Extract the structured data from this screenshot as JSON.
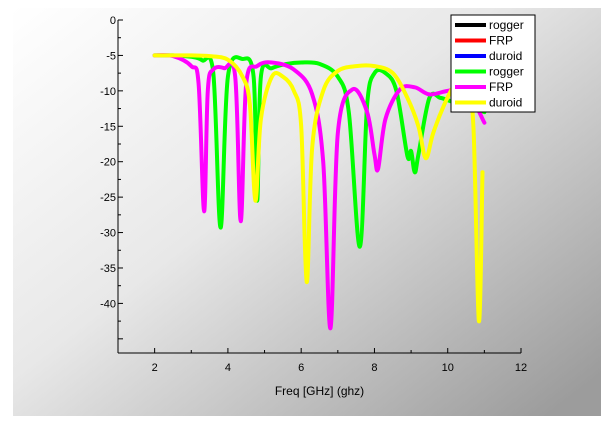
{
  "chart_data": {
    "type": "line",
    "title": "",
    "xlabel": "Freq [GHz] (ghz)",
    "ylabel": "",
    "xlim": [
      1,
      12
    ],
    "ylim": [
      -47,
      0
    ],
    "x_ticks": [
      "2",
      "4",
      "6",
      "8",
      "10",
      "12"
    ],
    "y_ticks": [
      "0",
      "-5",
      "-10",
      "-15",
      "-20",
      "-25",
      "-30",
      "-35",
      "-40"
    ],
    "legend_position": "top-right",
    "grid": false,
    "series": [
      {
        "name": "rogger",
        "color": "#000000",
        "x": [],
        "y": []
      },
      {
        "name": "FRP",
        "color": "#ff0000",
        "x": [],
        "y": []
      },
      {
        "name": "duroid",
        "color": "#0000ff",
        "x": [],
        "y": []
      },
      {
        "name": "rogger",
        "color": "#00ff00",
        "x": [
          2.0,
          2.5,
          3.0,
          3.3,
          3.6,
          3.8,
          4.0,
          4.4,
          4.7,
          4.8,
          4.9,
          5.2,
          5.6,
          6.0,
          6.5,
          7.0,
          7.3,
          7.6,
          7.8,
          8.0,
          8.3,
          8.6,
          8.9,
          9.0,
          9.1,
          9.2,
          9.5,
          9.8,
          10.1,
          10.4,
          10.7,
          11.0
        ],
        "y": [
          -5,
          -5,
          -5.2,
          -5.7,
          -7.5,
          -29.3,
          -8,
          -5.5,
          -8,
          -25.5,
          -8,
          -6.8,
          -6.2,
          -6,
          -6.2,
          -8,
          -13,
          -32,
          -12,
          -7.5,
          -7.5,
          -10,
          -19.2,
          -18.5,
          -21.5,
          -19,
          -11,
          -11,
          -11.5,
          -12,
          -12.5,
          -13
        ]
      },
      {
        "name": "FRP",
        "color": "#ff00ff",
        "x": [
          2.0,
          2.5,
          3.0,
          3.2,
          3.35,
          3.45,
          3.6,
          3.9,
          4.2,
          4.35,
          4.5,
          4.8,
          5.2,
          5.8,
          6.3,
          6.6,
          6.8,
          7.0,
          7.4,
          7.8,
          8.0,
          8.1,
          8.3,
          8.7,
          9.1,
          9.5,
          10.0,
          10.5,
          11.0
        ],
        "y": [
          -5,
          -5.1,
          -6.5,
          -9,
          -27,
          -10,
          -7,
          -6.8,
          -8,
          -28.4,
          -9,
          -6.5,
          -6,
          -7,
          -10.5,
          -20,
          -43.5,
          -16,
          -9.8,
          -13,
          -19,
          -21,
          -14,
          -9.8,
          -9.5,
          -10.5,
          -10,
          -9.8,
          -14.5
        ]
      },
      {
        "name": "duroid",
        "color": "#ffff00",
        "x": [
          2.0,
          2.5,
          3.0,
          3.5,
          4.0,
          4.4,
          4.6,
          4.75,
          4.9,
          5.2,
          5.5,
          5.8,
          6.0,
          6.15,
          6.3,
          6.6,
          7.0,
          7.5,
          8.0,
          8.5,
          8.9,
          9.2,
          9.4,
          9.6,
          9.9,
          10.2,
          10.5,
          10.7,
          10.85,
          10.95
        ],
        "y": [
          -5,
          -5,
          -5,
          -5.1,
          -5.6,
          -8,
          -12,
          -25.5,
          -14,
          -8,
          -8,
          -10,
          -15,
          -37,
          -18,
          -10,
          -7.2,
          -6.5,
          -6.5,
          -7.5,
          -11,
          -15,
          -19.5,
          -16,
          -12,
          -9,
          -7.5,
          -15,
          -42.5,
          -21.5
        ]
      }
    ]
  }
}
